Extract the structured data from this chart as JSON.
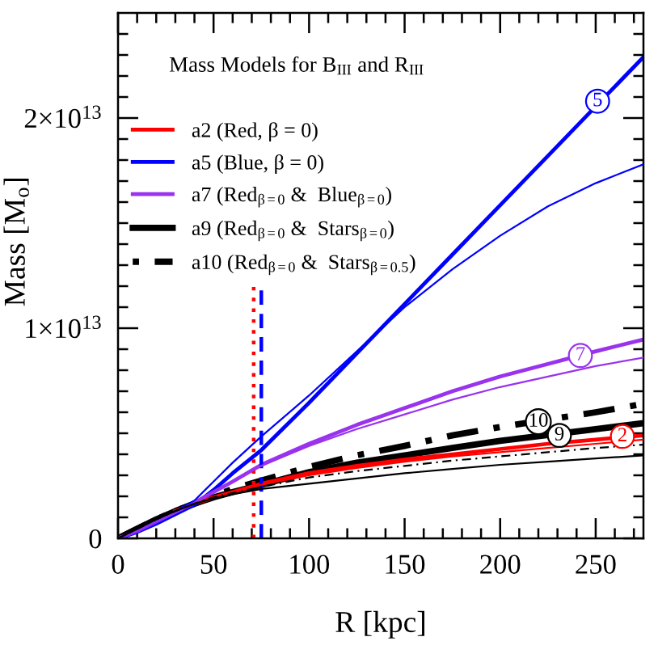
{
  "chart_data": {
    "type": "line",
    "title": "Mass Models for B$_{III}$ and R$_{III}$",
    "xlabel": "R [kpc]",
    "ylabel": "Mass [M$_{o}$]",
    "x": [
      0,
      10,
      20,
      30,
      40,
      50,
      60,
      75,
      100,
      125,
      150,
      175,
      200,
      225,
      250,
      275
    ],
    "series": [
      {
        "name": "a2 (Red, β = 0)",
        "color": "#ff0000",
        "values": [
          null,
          null,
          null,
          1300000000000.0,
          1650000000000.0,
          1950000000000.0,
          2200000000000.0,
          2600000000000.0,
          3100000000000.0,
          3450000000000.0,
          3750000000000.0,
          4000000000000.0,
          4250000000000.0,
          4500000000000.0,
          4700000000000.0,
          4900000000000.0
        ]
      },
      {
        "name": "a5 (Blue, β = 0)",
        "color": "#0000ff",
        "x": [
          0,
          10,
          20,
          30,
          40,
          50,
          60,
          75,
          100,
          125,
          150,
          175,
          200,
          225,
          275
        ],
        "values": [
          0,
          300000000000.0,
          700000000000.0,
          1150000000000.0,
          1600000000000.0,
          2300000000000.0,
          3100000000000.0,
          4200000000000.0,
          6450000000000.0,
          8800000000000.0,
          11150000000000.0,
          13500000000000.0,
          15850000000000.0,
          18200000000000.0,
          22900000000000.0
        ]
      },
      {
        "name": "a7 (Red$_{β=0}$ &  Blue$_{β=0}$)",
        "color": "#9933ee",
        "values": [
          0,
          350000000000.0,
          800000000000.0,
          1250000000000.0,
          1700000000000.0,
          2200000000000.0,
          2700000000000.0,
          3500000000000.0,
          4500000000000.0,
          5400000000000.0,
          6200000000000.0,
          7000000000000.0,
          7700000000000.0,
          8300000000000.0,
          8900000000000.0,
          9460000000000.0
        ]
      },
      {
        "name": "a9 (Red$_{β=0}$ &  Stars$_{β=0}$)",
        "color": "#000000",
        "x": [
          0,
          10,
          20,
          30,
          40,
          50,
          60,
          75,
          100,
          125,
          150,
          175,
          200,
          250,
          275
        ],
        "values": [
          0,
          450000000000.0,
          900000000000.0,
          1300000000000.0,
          1650000000000.0,
          1950000000000.0,
          2200000000000.0,
          2550000000000.0,
          3150000000000.0,
          3600000000000.0,
          3950000000000.0,
          4300000000000.0,
          4640000000000.0,
          5200000000000.0,
          5480000000000.0
        ]
      },
      {
        "name": "a10 (Red$_{β=0}$ &  Stars$_{β=0.5}$)",
        "color": "#000000",
        "line_style": "dashdot",
        "x": [
          0,
          10,
          20,
          30,
          40,
          50,
          60,
          75,
          100,
          125,
          150,
          175,
          200,
          250,
          275
        ],
        "values": [
          0,
          450000000000.0,
          900000000000.0,
          1300000000000.0,
          1650000000000.0,
          2000000000000.0,
          2350000000000.0,
          2750000000000.0,
          3400000000000.0,
          3950000000000.0,
          4400000000000.0,
          4900000000000.0,
          5300000000000.0,
          6000000000000.0,
          6400000000000.0
        ]
      },
      {
        "color": "#ff0000",
        "values": [
          null,
          null,
          null,
          1300000000000.0,
          1650000000000.0,
          1950000000000.0,
          2200000000000.0,
          2550000000000.0,
          3000000000000.0,
          3350000000000.0,
          3650000000000.0,
          3900000000000.0,
          4100000000000.0,
          4300000000000.0,
          4500000000000.0,
          4700000000000.0
        ]
      },
      {
        "color": "#0000ff",
        "values": [
          0,
          350000000000.0,
          800000000000.0,
          1300000000000.0,
          1800000000000.0,
          2700000000000.0,
          3600000000000.0,
          4850000000000.0,
          6800000000000.0,
          8900000000000.0,
          11000000000000.0,
          12800000000000.0,
          14400000000000.0,
          15800000000000.0,
          16900000000000.0,
          17800000000000.0
        ]
      },
      {
        "color": "#9933ee",
        "values": [
          0,
          350000000000.0,
          800000000000.0,
          1250000000000.0,
          1700000000000.0,
          2200000000000.0,
          2700000000000.0,
          3450000000000.0,
          4400000000000.0,
          5200000000000.0,
          5900000000000.0,
          6600000000000.0,
          7200000000000.0,
          7700000000000.0,
          8200000000000.0,
          8600000000000.0
        ]
      },
      {
        "color": "#000000",
        "values": [
          0,
          450000000000.0,
          900000000000.0,
          1300000000000.0,
          1650000000000.0,
          1900000000000.0,
          2100000000000.0,
          2350000000000.0,
          2600000000000.0,
          2850000000000.0,
          3100000000000.0,
          3300000000000.0,
          3500000000000.0,
          3650000000000.0,
          3800000000000.0,
          3950000000000.0
        ]
      },
      {
        "color": "#000000",
        "line_style": "dashdot",
        "values": [
          0,
          450000000000.0,
          900000000000.0,
          1300000000000.0,
          1650000000000.0,
          1950000000000.0,
          2150000000000.0,
          2450000000000.0,
          2900000000000.0,
          3200000000000.0,
          3450000000000.0,
          3700000000000.0,
          3900000000000.0,
          4100000000000.0,
          4300000000000.0,
          4460000000000.0
        ]
      },
      {
        "color": "#ff0000",
        "line_style": "dotted",
        "x": [
          71,
          71
        ],
        "values": [
          0,
          12000000000000.0
        ]
      },
      {
        "color": "#0000ff",
        "line_style": "dashed",
        "x": [
          75,
          75
        ],
        "values": [
          0,
          12000000000000.0
        ]
      }
    ],
    "annotations": [
      {
        "text": "5",
        "x": 251,
        "y": 20800000000000.0
      },
      {
        "text": "7",
        "x": 242,
        "y": 8700000000000.0
      },
      {
        "text": "10",
        "x": 220,
        "y": 5550000000000.0
      },
      {
        "text": "9",
        "x": 231,
        "y": 4900000000000.0
      },
      {
        "text": "2",
        "x": 264,
        "y": 4850000000000.0
      }
    ],
    "xlim": [
      0,
      275
    ],
    "xticks": [
      0,
      {
        "value": 10,
        "label": null
      },
      {
        "value": 20,
        "label": null
      },
      {
        "value": 30,
        "label": null
      },
      {
        "value": 40,
        "label": null
      },
      50,
      {
        "value": 60,
        "label": null
      },
      {
        "value": 70,
        "label": null
      },
      {
        "value": 80,
        "label": null
      },
      {
        "value": 90,
        "label": null
      },
      100,
      {
        "value": 110,
        "label": null
      },
      {
        "value": 120,
        "label": null
      },
      {
        "value": 130,
        "label": null
      },
      {
        "value": 140,
        "label": null
      },
      150,
      {
        "value": 160,
        "label": null
      },
      {
        "value": 170,
        "label": null
      },
      {
        "value": 180,
        "label": null
      },
      {
        "value": 190,
        "label": null
      },
      200,
      {
        "value": 210,
        "label": null
      },
      {
        "value": 220,
        "label": null
      },
      {
        "value": 230,
        "label": null
      },
      {
        "value": 240,
        "label": null
      },
      250,
      {
        "value": 260,
        "label": null
      },
      {
        "value": 270,
        "label": null
      }
    ],
    "ylim": [
      0,
      25000000000000.0
    ],
    "yticks": [
      0,
      {
        "value": 1000000000000.0,
        "label": null
      },
      {
        "value": 2000000000000.0,
        "label": null
      },
      {
        "value": 3000000000000.0,
        "label": null
      },
      {
        "value": 4000000000000.0,
        "label": null
      },
      {
        "value": 5000000000000.0,
        "label": null
      },
      {
        "value": 6000000000000.0,
        "label": null
      },
      {
        "value": 7000000000000.0,
        "label": null
      },
      {
        "value": 8000000000000.0,
        "label": null
      },
      {
        "value": 9000000000000.0,
        "label": null
      },
      {
        "value": 10000000000000.0,
        "label": "1×10$^{13}$"
      },
      {
        "value": 11000000000000.0,
        "label": null
      },
      {
        "value": 12000000000000.0,
        "label": null
      },
      {
        "value": 13000000000000.0,
        "label": null
      },
      {
        "value": 14000000000000.0,
        "label": null
      },
      {
        "value": 15000000000000.0,
        "label": null
      },
      {
        "value": 16000000000000.0,
        "label": null
      },
      {
        "value": 17000000000000.0,
        "label": null
      },
      {
        "value": 18000000000000.0,
        "label": null
      },
      {
        "value": 19000000000000.0,
        "label": null
      },
      {
        "value": 20000000000000.0,
        "label": "2×10$^{13}$"
      },
      {
        "value": 21000000000000.0,
        "label": null
      },
      {
        "value": 22000000000000.0,
        "label": null
      },
      {
        "value": 23000000000000.0,
        "label": null
      },
      {
        "value": 24000000000000.0,
        "label": null
      }
    ],
    "legend": "top left"
  }
}
